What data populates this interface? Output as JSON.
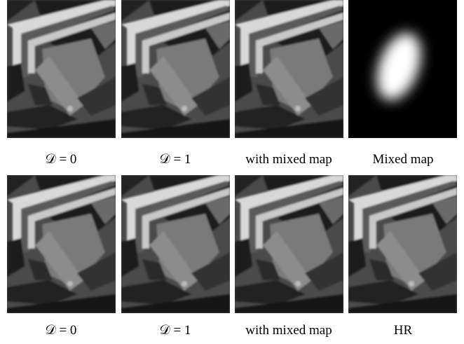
{
  "rows": [
    {
      "panels": [
        {
          "caption": "𝒟 = 0"
        },
        {
          "caption": "𝒟 = 1"
        },
        {
          "caption": "with mixed map"
        },
        {
          "caption": "Mixed map"
        }
      ]
    },
    {
      "panels": [
        {
          "caption": "𝒟 = 0"
        },
        {
          "caption": "𝒟 = 1"
        },
        {
          "caption": "with mixed map"
        },
        {
          "caption": "HR"
        }
      ]
    }
  ]
}
